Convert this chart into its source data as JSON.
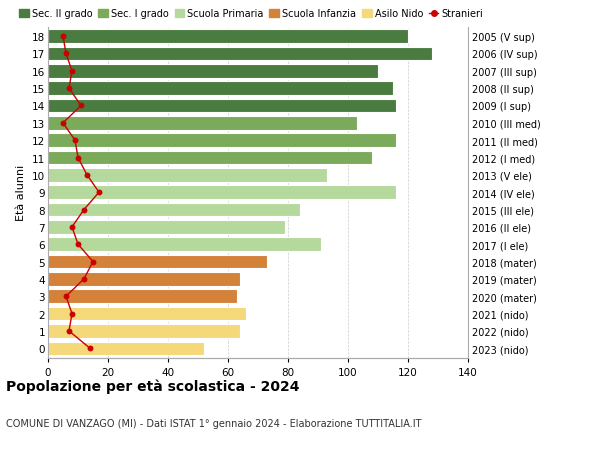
{
  "ages": [
    18,
    17,
    16,
    15,
    14,
    13,
    12,
    11,
    10,
    9,
    8,
    7,
    6,
    5,
    4,
    3,
    2,
    1,
    0
  ],
  "right_labels": [
    "2005 (V sup)",
    "2006 (IV sup)",
    "2007 (III sup)",
    "2008 (II sup)",
    "2009 (I sup)",
    "2010 (III med)",
    "2011 (II med)",
    "2012 (I med)",
    "2013 (V ele)",
    "2014 (IV ele)",
    "2015 (III ele)",
    "2016 (II ele)",
    "2017 (I ele)",
    "2018 (mater)",
    "2019 (mater)",
    "2020 (mater)",
    "2021 (nido)",
    "2022 (nido)",
    "2023 (nido)"
  ],
  "bar_values": [
    120,
    128,
    110,
    115,
    116,
    103,
    116,
    108,
    93,
    116,
    84,
    79,
    91,
    73,
    64,
    63,
    66,
    64,
    52
  ],
  "bar_colors": [
    "#4a7c3f",
    "#4a7c3f",
    "#4a7c3f",
    "#4a7c3f",
    "#4a7c3f",
    "#7aaa5a",
    "#7aaa5a",
    "#7aaa5a",
    "#b5d99c",
    "#b5d99c",
    "#b5d99c",
    "#b5d99c",
    "#b5d99c",
    "#d4813a",
    "#d4813a",
    "#d4813a",
    "#f5d87a",
    "#f5d87a",
    "#f5d87a"
  ],
  "stranieri_values": [
    5,
    6,
    8,
    7,
    11,
    5,
    9,
    10,
    13,
    17,
    12,
    8,
    10,
    15,
    12,
    6,
    8,
    7,
    14
  ],
  "legend_labels": [
    "Sec. II grado",
    "Sec. I grado",
    "Scuola Primaria",
    "Scuola Infanzia",
    "Asilo Nido",
    "Stranieri"
  ],
  "legend_colors": [
    "#4a7c3f",
    "#7aaa5a",
    "#b5d99c",
    "#d4813a",
    "#f5d87a",
    "#cc0000"
  ],
  "ylabel_left": "Età alunni",
  "title": "Popolazione per età scolastica - 2024",
  "subtitle": "COMUNE DI VANZAGO (MI) - Dati ISTAT 1° gennaio 2024 - Elaborazione TUTTITALIA.IT",
  "xlim": [
    0,
    140
  ],
  "xticks": [
    0,
    20,
    40,
    60,
    80,
    100,
    120,
    140
  ],
  "background_color": "#ffffff",
  "grid_color": "#cccccc"
}
